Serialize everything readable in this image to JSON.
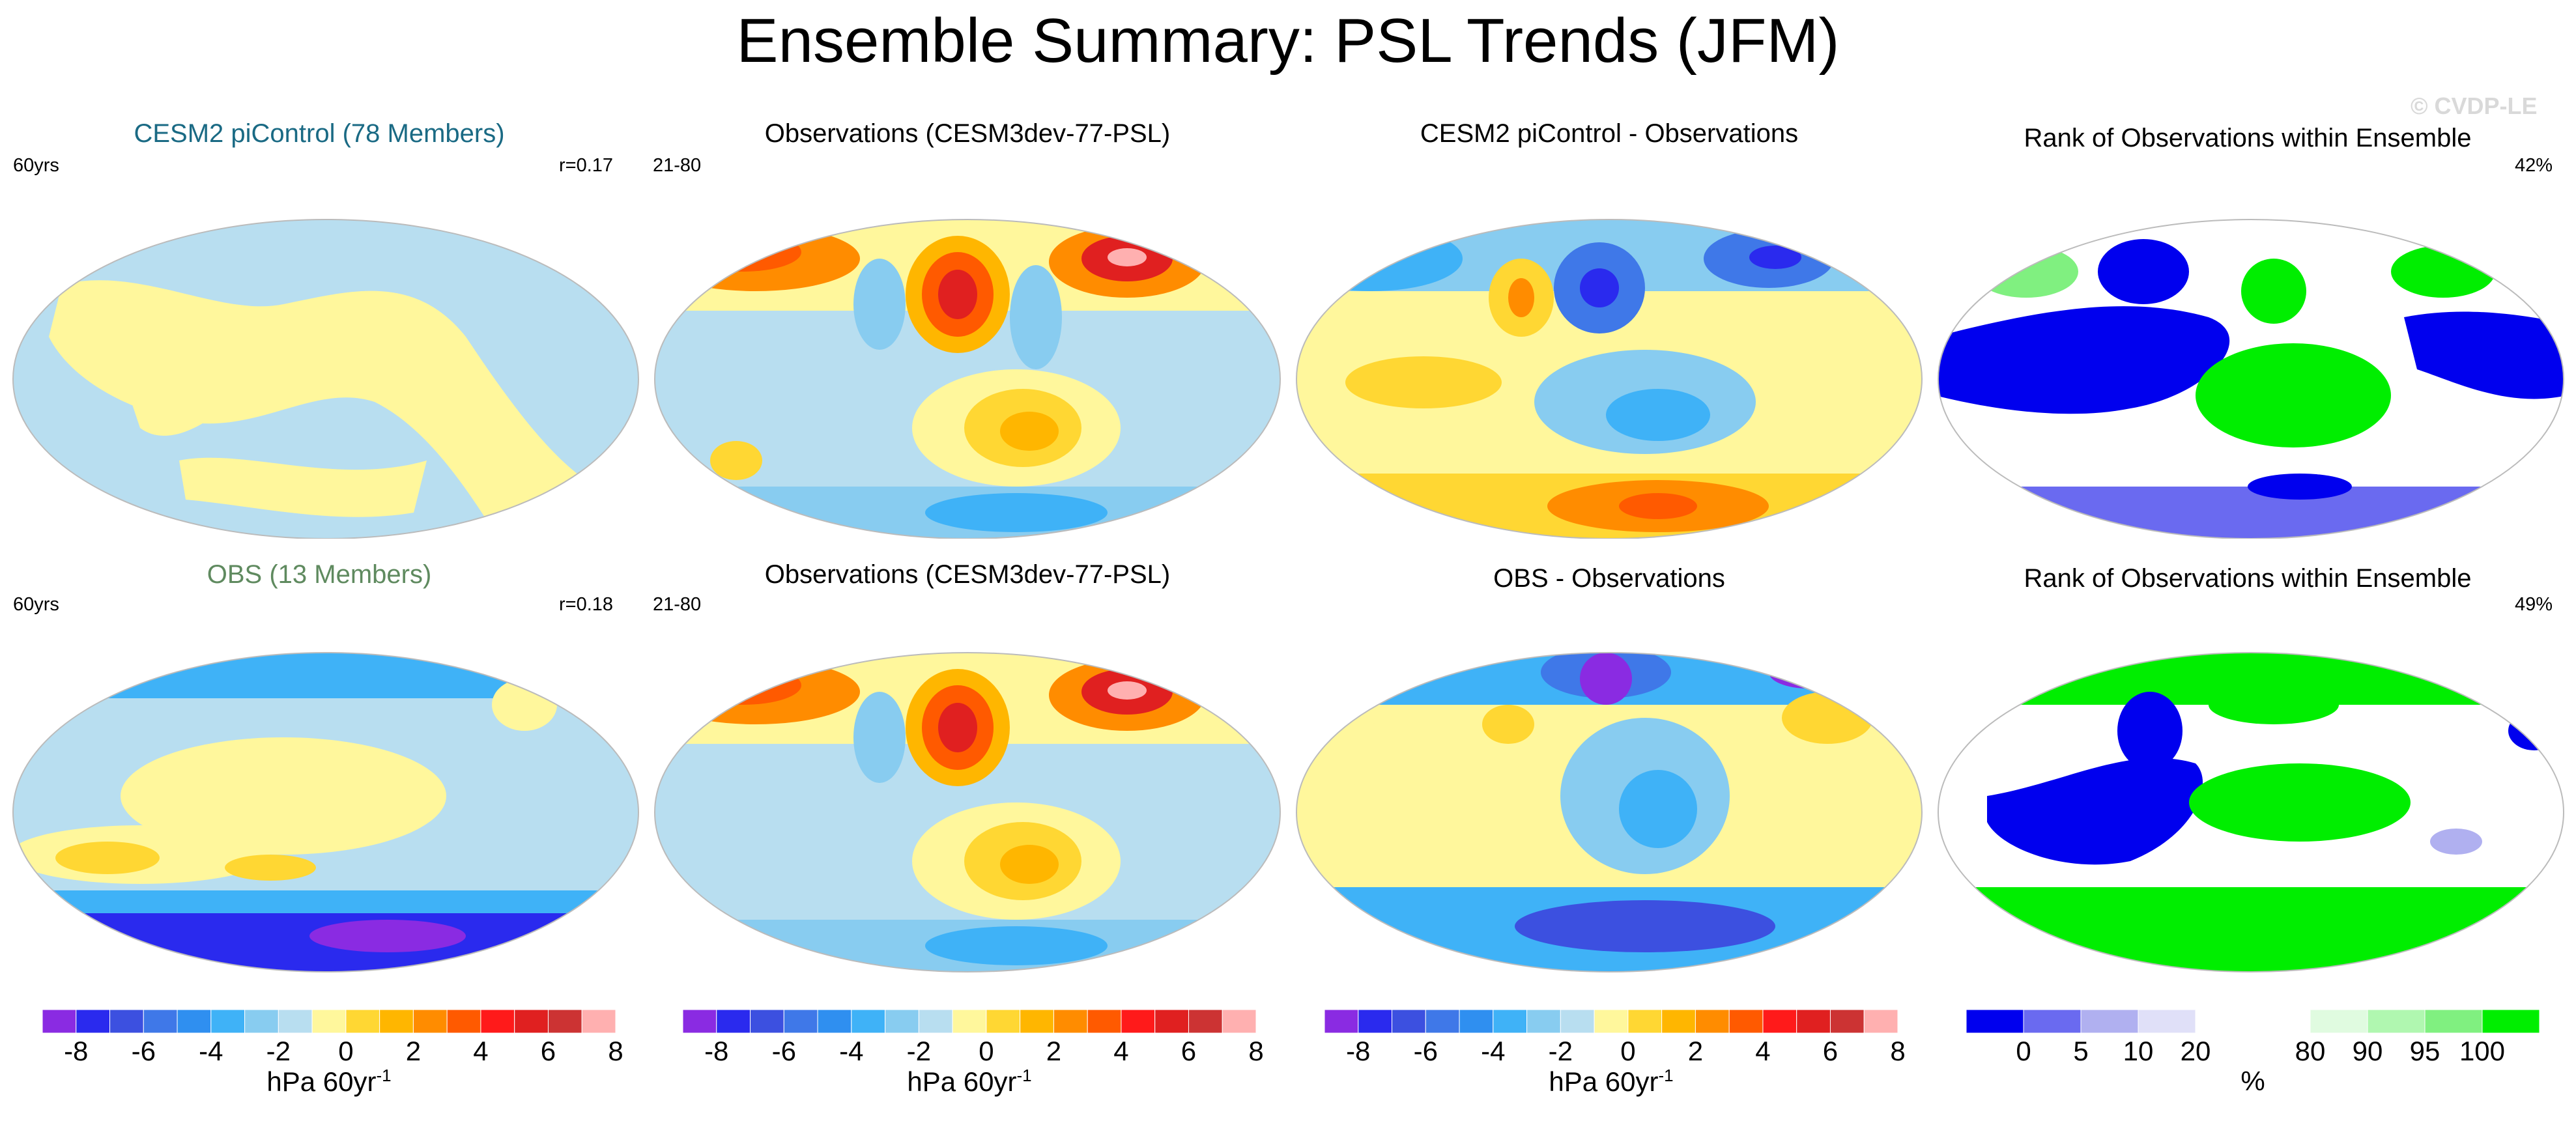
{
  "title": "Ensemble Summary: PSL Trends (JFM)",
  "watermark": "© CVDP-LE",
  "rows": [
    {
      "panels": [
        {
          "title": "CESM2 piControl (78 Members)",
          "title_color": "#1a6a84",
          "left_label": "60yrs",
          "right_label": "r=0.17"
        },
        {
          "title": "Observations (CESM3dev-77-PSL)",
          "title_color": "#000000",
          "left_label": "21-80",
          "right_label": ""
        },
        {
          "title": "CESM2 piControl - Observations",
          "title_color": "#000000",
          "left_label": "",
          "right_label": ""
        },
        {
          "title": "Rank of Observations within Ensemble",
          "title_color": "#000000",
          "left_label": "",
          "right_label": "42%"
        }
      ]
    },
    {
      "panels": [
        {
          "title": "OBS (13 Members)",
          "title_color": "#5f8a5f",
          "left_label": "60yrs",
          "right_label": "r=0.18"
        },
        {
          "title": "Observations (CESM3dev-77-PSL)",
          "title_color": "#000000",
          "left_label": "21-80",
          "right_label": ""
        },
        {
          "title": "OBS - Observations",
          "title_color": "#000000",
          "left_label": "",
          "right_label": ""
        },
        {
          "title": "Rank of Observations within Ensemble",
          "title_color": "#000000",
          "left_label": "",
          "right_label": "49%"
        }
      ]
    }
  ],
  "psl_colorbar": {
    "colors": [
      "#8a2be2",
      "#2a2aee",
      "#3c50e0",
      "#3f78e8",
      "#2f8ff0",
      "#3fb2f7",
      "#88ccf0",
      "#b8def0",
      "#fff79c",
      "#ffd733",
      "#ffb600",
      "#ff8c00",
      "#ff5a00",
      "#ff1a1a",
      "#e02020",
      "#cc3333",
      "#ffb0b0"
    ],
    "tick_labels": [
      "-8",
      "-6",
      "-4",
      "-2",
      "0",
      "2",
      "4",
      "6",
      "8"
    ],
    "unit_main": "hPa 60yr",
    "unit_exp": "-1"
  },
  "rank_colorbar": {
    "colors": [
      "#0000ee",
      "#6a6af0",
      "#b0b0f0",
      "#e0e0f8",
      "#ffffff",
      "#ffffff",
      "#e0fbe0",
      "#b0f7b0",
      "#80f080",
      "#00ee00"
    ],
    "tick_labels": [
      "0",
      "5",
      "10",
      "20",
      "80",
      "90",
      "95",
      "100"
    ],
    "unit": "%"
  }
}
